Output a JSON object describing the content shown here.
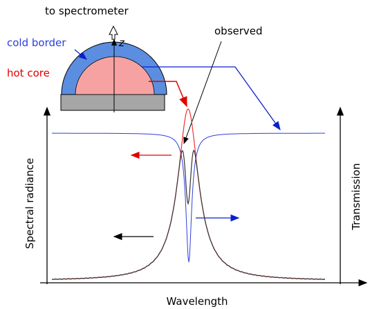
{
  "labels": {
    "to_spectrometer": "to spectrometer",
    "cold_border": "cold border",
    "z_axis": "z",
    "hot_core": "hot core",
    "observed": "observed",
    "y_left": "Spectral radiance",
    "y_right": "Transmission",
    "x_axis": "Wavelength"
  }
}
